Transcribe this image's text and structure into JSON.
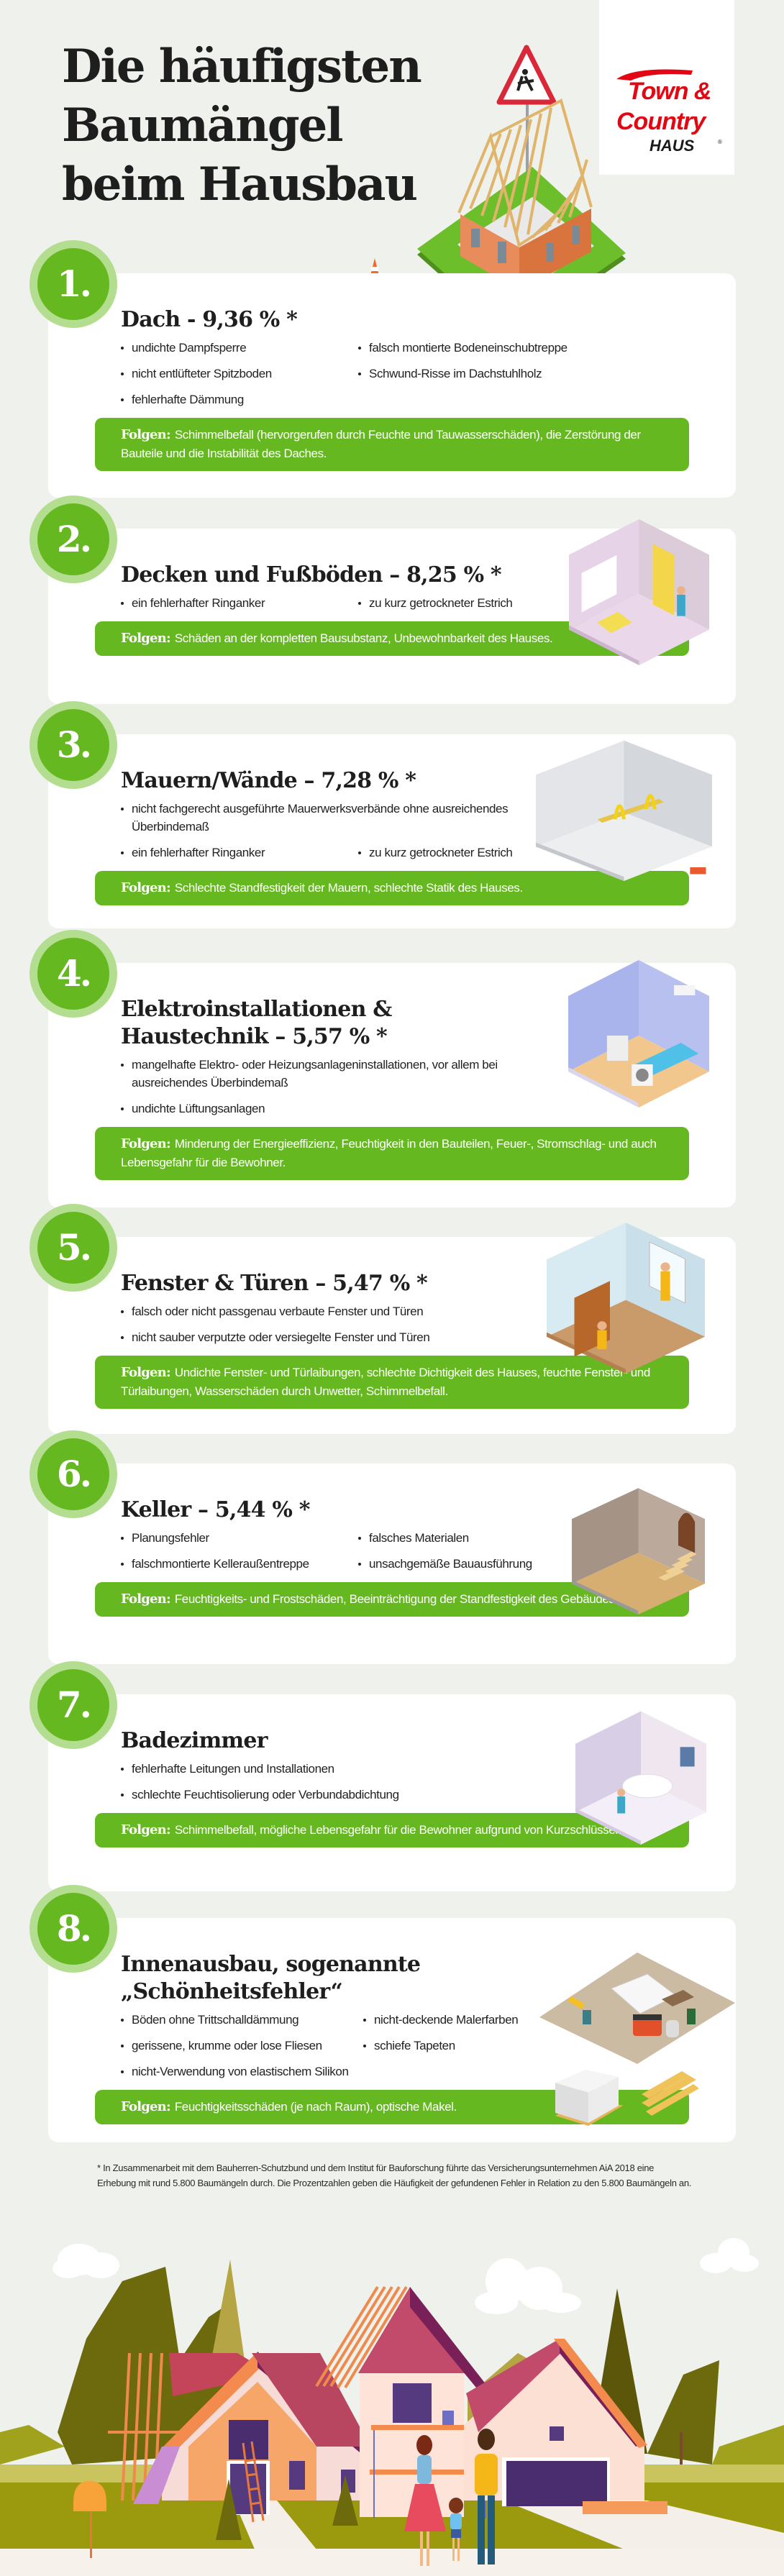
{
  "header": {
    "title_lines": [
      "Die häufigsten",
      "Baumängel",
      "beim Hausbau"
    ]
  },
  "logo": {
    "line1": "Town &",
    "line2": "Country",
    "line3": "HAUS",
    "registered": "®",
    "color": "#e30613"
  },
  "colors": {
    "accent_green": "#66b821",
    "ring_green": "#b3dd8f",
    "background": "#eff1ec"
  },
  "items": [
    {
      "number": "1.",
      "title_lines": [
        "Dach - 9,36 % *"
      ],
      "bullets": [
        "undichte Dampfsperre",
        "falsch montierte Bodeneinschubtreppe",
        "nicht entlüfteter Spitzboden",
        "Schwund-Risse im Dachstuhlholz",
        "fehlerhafte Dämmung"
      ],
      "folgen_label": "Folgen:",
      "folgen_text": "Schimmelbefall (hervorgerufen durch Feuchte und Tauwasserschäden), die Zerstörung der Bauteile und die Instabilität des Daches."
    },
    {
      "number": "2.",
      "title_lines": [
        "Decken und Fußböden – 8,25 % *"
      ],
      "bullets": [
        "ein fehlerhafter Ringanker",
        "zu kurz getrockneter Estrich"
      ],
      "folgen_label": "Folgen:",
      "folgen_text": "Schäden an der kompletten Bausubstanz, Unbewohnbarkeit des Hauses."
    },
    {
      "number": "3.",
      "title_lines": [
        "Mauern/Wände – 7,28 % *"
      ],
      "bullets": [
        "nicht fachgerecht ausgeführte Mauerwerksverbände ohne ausreichendes Überbindemaß",
        "ein fehlerhafter Ringanker",
        "zu kurz getrockneter Estrich"
      ],
      "folgen_label": "Folgen:",
      "folgen_text": "Schlechte Standfestigkeit der Mauern, schlechte Statik des Hauses."
    },
    {
      "number": "4.",
      "title_lines": [
        "Elektroinstallationen &",
        "Haustechnik – 5,57 % *"
      ],
      "bullets": [
        "mangelhafte Elektro- oder Heizungsanlageninstallationen, vor allem bei ausreichendes Überbindemaß",
        "undichte Lüftungsanlagen"
      ],
      "folgen_label": "Folgen:",
      "folgen_text": "Minderung der Energieeffizienz, Feuchtigkeit in den Bauteilen, Feuer-, Stromschlag- und auch Lebensgefahr für die Bewohner."
    },
    {
      "number": "5.",
      "title_lines": [
        "Fenster & Türen – 5,47 % *"
      ],
      "bullets": [
        "falsch oder nicht passgenau verbaute Fenster und Türen",
        "nicht sauber verputzte oder versiegelte Fenster und Türen"
      ],
      "folgen_label": "Folgen:",
      "folgen_text": "Undichte Fenster- und Türlaibungen, schlechte Dichtigkeit des Hauses, feuchte Fenster- und Türlaibungen, Wasserschäden durch Unwetter, Schimmelbefall."
    },
    {
      "number": "6.",
      "title_lines": [
        "Keller – 5,44 % *"
      ],
      "bullets": [
        "Planungsfehler",
        "falsches Materialen",
        "falschmontierte Kelleraußentreppe",
        "unsachgemäße Bauausführung"
      ],
      "folgen_label": "Folgen:",
      "folgen_text": "Feuchtigkeits- und Frostschäden, Beeinträchtigung der Standfestigkeit des Gebäudes."
    },
    {
      "number": "7.",
      "title_lines": [
        "Badezimmer"
      ],
      "bullets": [
        "fehlerhafte Leitungen und Installationen",
        "schlechte Feuchtisolierung oder Verbundabdichtung"
      ],
      "folgen_label": "Folgen:",
      "folgen_text": "Schimmelbefall, mögliche Lebensgefahr für die Bewohner aufgrund von Kurzschlüssen."
    },
    {
      "number": "8.",
      "title_lines": [
        "Innenausbau, sogenannte",
        "„Schönheitsfehler“"
      ],
      "bullets": [
        "Böden ohne Trittschalldämmung",
        "nicht-deckende Malerfarben",
        "gerissene, krumme oder lose Fliesen",
        "schiefe Tapeten",
        "nicht-Verwendung von elastischem Silikon"
      ],
      "folgen_label": "Folgen:",
      "folgen_text": "Feuchtigkeitsschäden (je nach Raum), optische Makel."
    }
  ],
  "footnote": "* In Zusammenarbeit mit dem Bauherren-Schutzbund und dem Institut für Bauforschung führte das Versicherungsunternehmen AiA 2018 eine Erhebung mit rund 5.800 Baumängeln durch. Die Prozentzahlen geben die Häufigkeit der gefundenen Fehler in Relation zu den 5.800 Baumängeln an."
}
